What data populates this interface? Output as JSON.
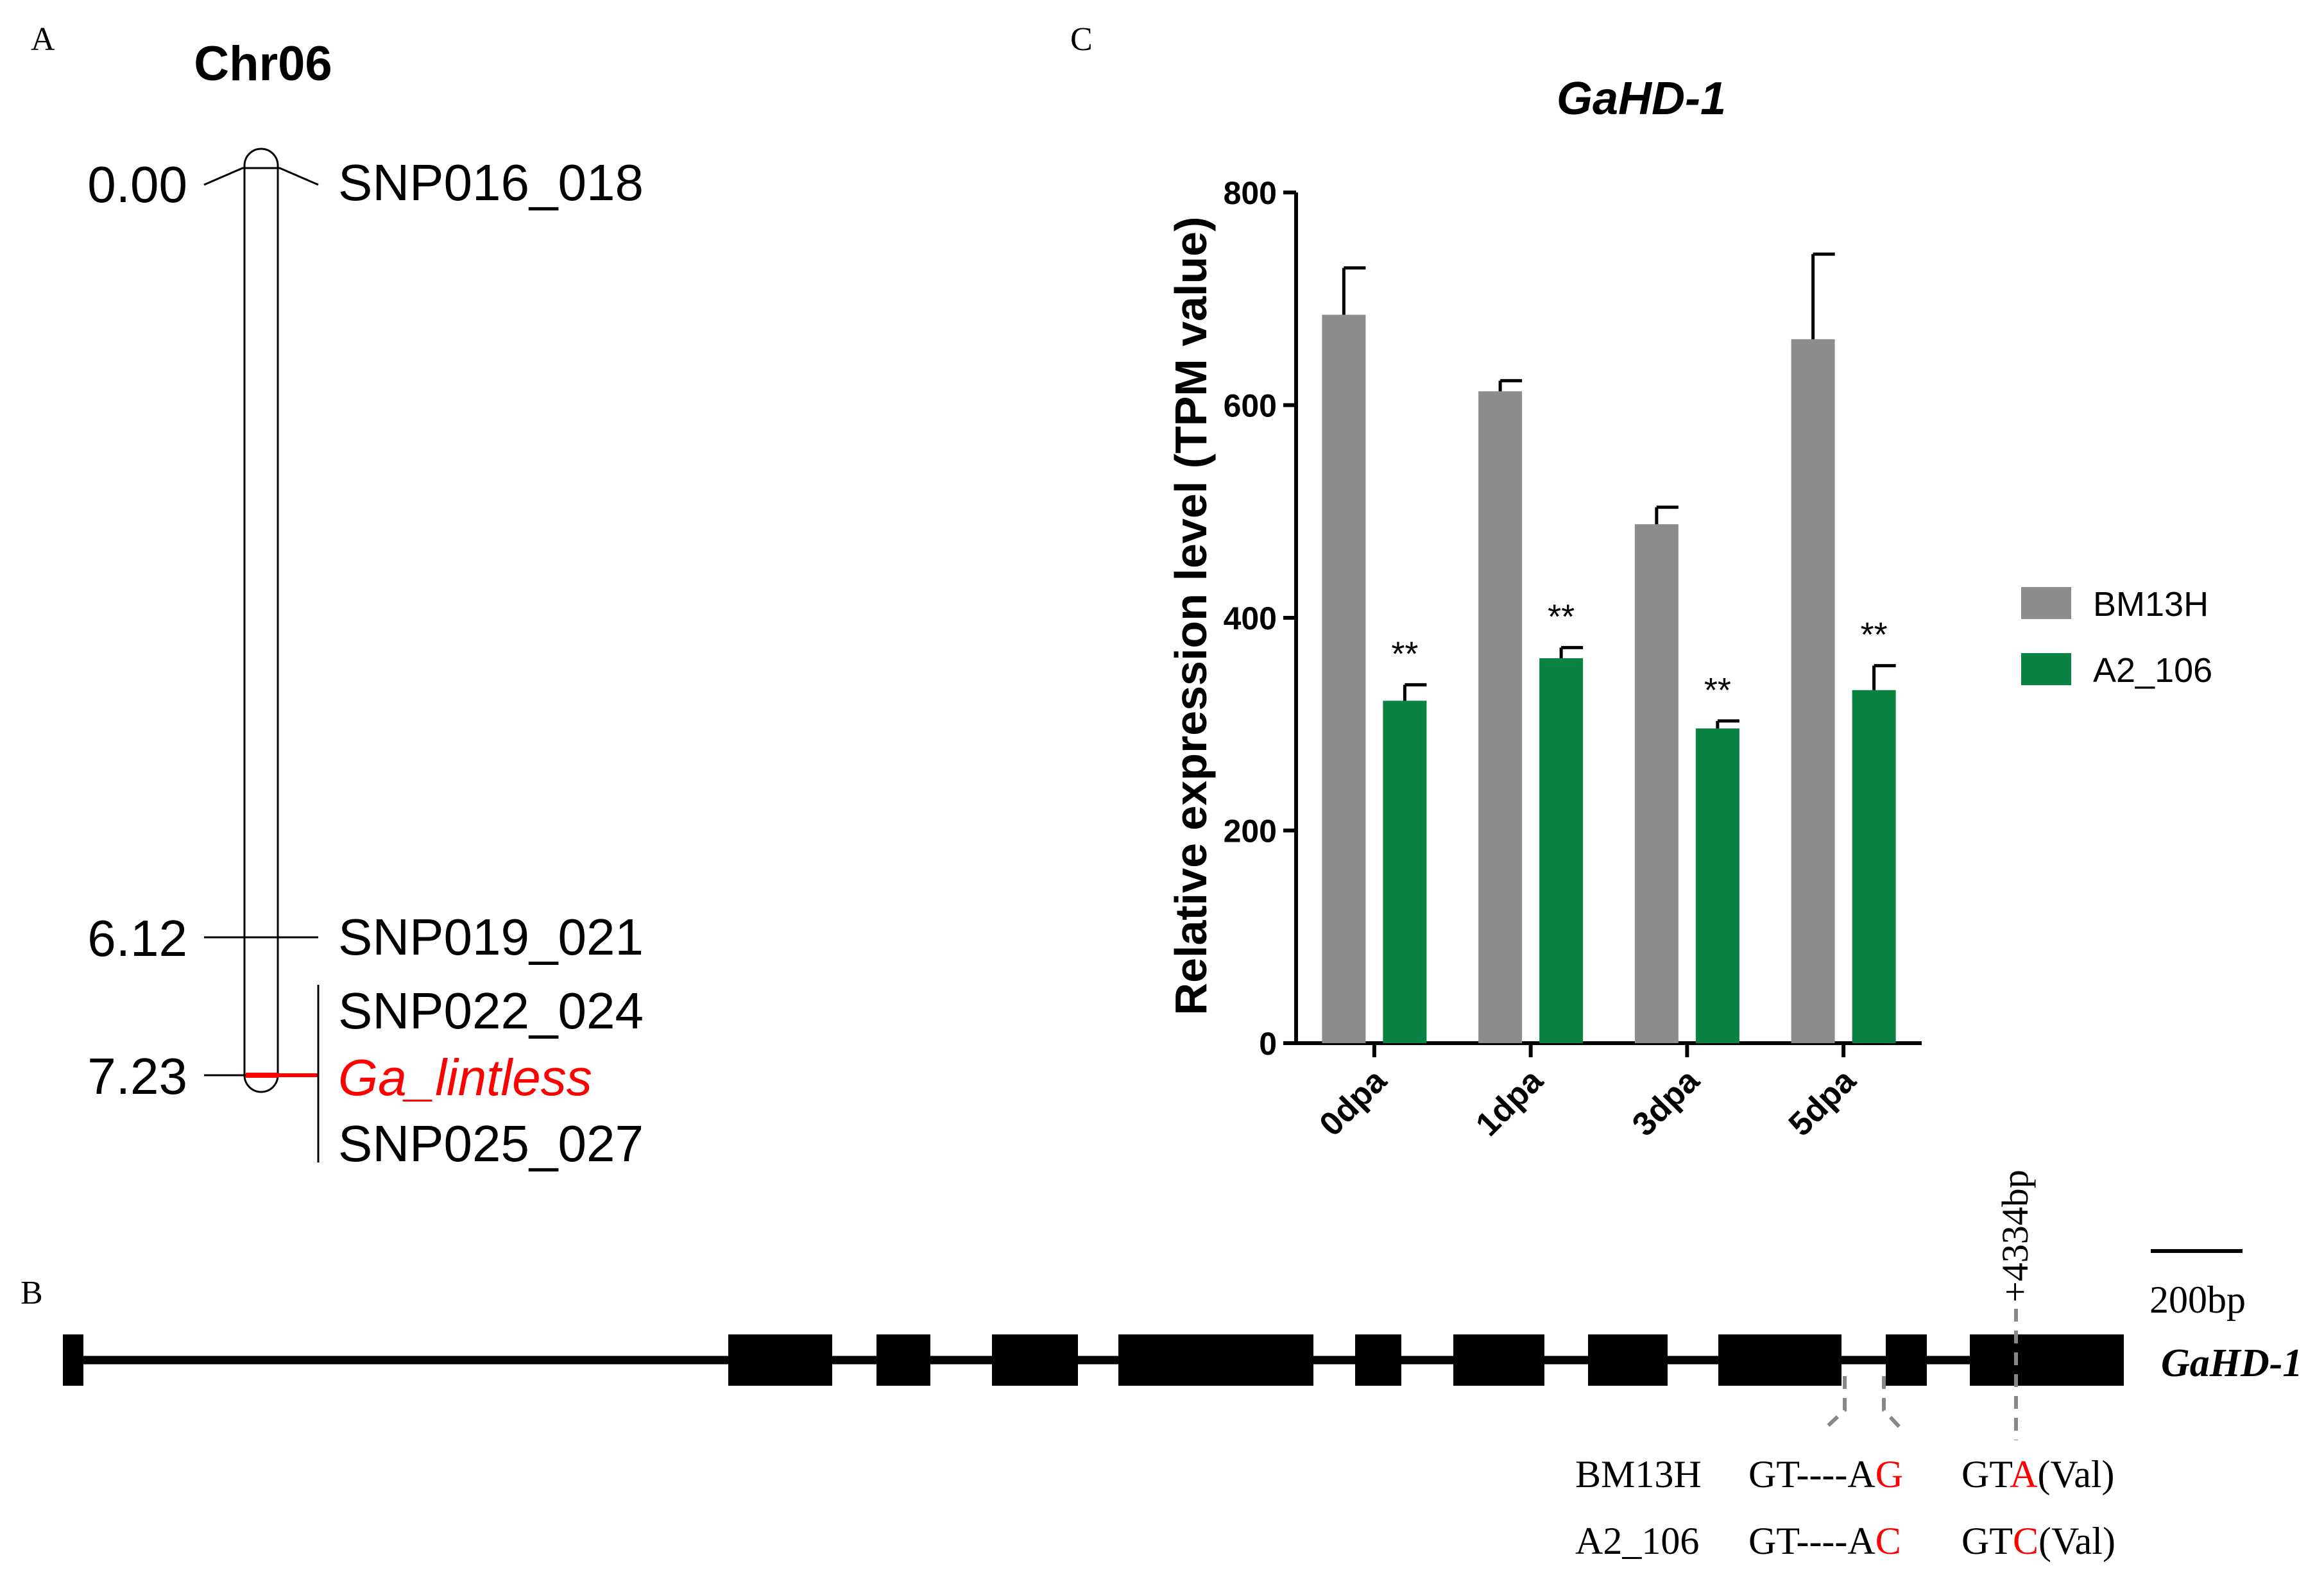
{
  "panels": {
    "a": {
      "letter": "A"
    },
    "b": {
      "letter": "B"
    },
    "c": {
      "letter": "C"
    }
  },
  "linkage_map": {
    "chromosome": "Chr06",
    "positions": [
      "0.00",
      "6.12",
      "7.23"
    ],
    "markers": [
      "SNP016_018",
      "SNP019_021",
      "SNP022_024",
      "SNP025_027"
    ],
    "target_gene": "Ga_lintless",
    "target_color": "#ff0000"
  },
  "gene_structure": {
    "gene_name": "GaHD-1",
    "scale_label": "200bp",
    "position_label": "+4334bp",
    "rows": [
      {
        "line": "BM13H",
        "seq1_prefix": "GT----A",
        "seq1_variant": "G",
        "seq2_prefix": "GT",
        "seq2_variant": "A",
        "seq2_suffix": "(Val)"
      },
      {
        "line": "A2_106",
        "seq1_prefix": "GT----A",
        "seq1_variant": "C",
        "seq2_prefix": "GT",
        "seq2_variant": "C",
        "seq2_suffix": "(Val)"
      }
    ],
    "variant_color": "#ff0000"
  },
  "chart_data": {
    "type": "bar",
    "title": "GaHD-1",
    "xlabel": "",
    "ylabel": "Relative expression level (TPM value)",
    "categories": [
      "0dpa",
      "1dpa",
      "3dpa",
      "5dpa"
    ],
    "ylim": [
      0,
      800
    ],
    "yticks": [
      0,
      200,
      400,
      600,
      800
    ],
    "series": [
      {
        "name": "BM13H",
        "color": "#8c8c8c",
        "values": [
          685,
          613,
          488,
          662
        ],
        "errors": [
          44,
          10,
          16,
          80
        ]
      },
      {
        "name": "A2_106",
        "color": "#0a8241",
        "values": [
          322,
          362,
          296,
          332
        ],
        "errors": [
          15,
          10,
          7,
          23
        ]
      }
    ],
    "significance": [
      "**",
      "**",
      "**",
      "**"
    ],
    "legend_position": "right"
  }
}
